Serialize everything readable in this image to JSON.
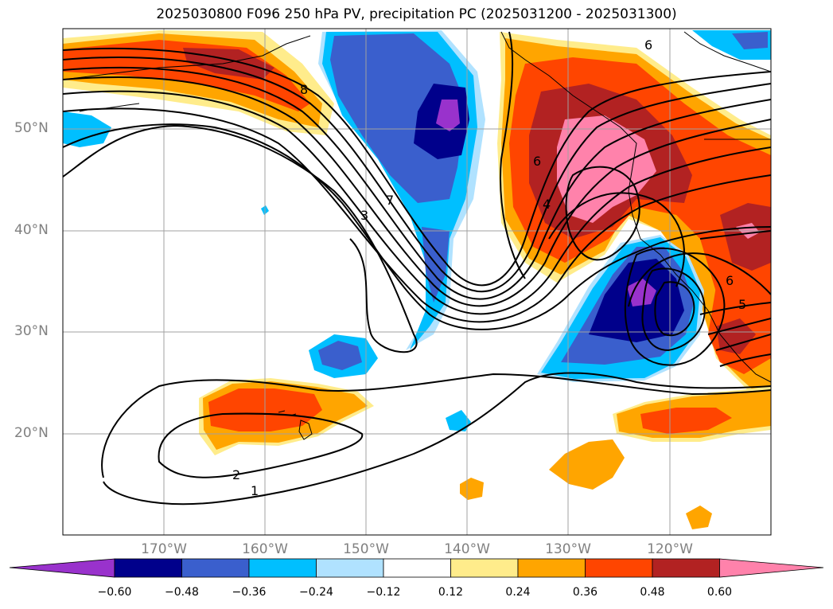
{
  "title": "2025030800 F096 250 hPa PV, precipitation PC (2025031200 - 2025031300)",
  "map": {
    "projection": "PlateCarree",
    "extent_lon": [
      -180,
      -110
    ],
    "extent_lat": [
      10,
      60
    ],
    "lat_ticks": [
      "50°N",
      "40°N",
      "30°N",
      "20°N"
    ],
    "lon_ticks": [
      "170°W",
      "160°W",
      "150°W",
      "140°W",
      "130°W",
      "120°W"
    ],
    "gridlines": true,
    "contour_labels": [
      "8",
      "7",
      "3",
      "6",
      "4",
      "6",
      "6",
      "5",
      "2",
      "1"
    ]
  },
  "colorbar": {
    "labels": [
      "−0.60",
      "−0.48",
      "−0.36",
      "−0.24",
      "−0.12",
      "0.12",
      "0.24",
      "0.36",
      "0.48",
      "0.60"
    ],
    "colors": [
      "#9932cc",
      "#00008b",
      "#3a5fcd",
      "#00bfff",
      "#b0e2ff",
      "#ffffff",
      "#ffec8b",
      "#ffa500",
      "#ff4500",
      "#b22222",
      "#ff82ab"
    ]
  }
}
